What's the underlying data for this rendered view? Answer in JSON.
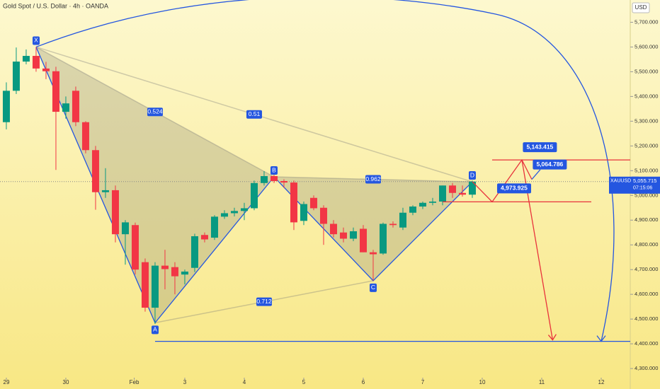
{
  "chart_data": {
    "type": "candlestick",
    "title": "Gold Spot / U.S. Dollar · 4h · OANDA",
    "currency": "USD",
    "symbol": "XAUUSD",
    "last_price": {
      "value": 5055.715,
      "label": "5,055.715"
    },
    "countdown": "07:15:06",
    "up_color": "#089981",
    "down_color": "#f23645",
    "open": [
      5296,
      5423,
      5541,
      5564,
      5513,
      5502,
      5338,
      5423,
      5296,
      5183,
      5013,
      5021,
      4843,
      4880,
      4730,
      4546,
      4716,
      4710,
      4680,
      4707,
      4840,
      4829,
      4914,
      4928,
      4937,
      4948,
      5050,
      5078,
      5058,
      5052,
      4897,
      4990,
      4950,
      4885,
      4850,
      4825,
      4865,
      4770,
      4765,
      4885,
      4870,
      4930,
      4955,
      4970,
      4975,
      5040,
      5010,
      5003
    ],
    "high": [
      5457,
      5598,
      5590,
      5600,
      5540,
      5520,
      5400,
      5440,
      5300,
      5200,
      5110,
      5040,
      4900,
      4890,
      4745,
      4730,
      4780,
      4730,
      4700,
      4845,
      4850,
      4920,
      4940,
      4950,
      4970,
      5060,
      5098,
      5090,
      5065,
      5060,
      4975,
      5000,
      4960,
      4900,
      4870,
      4870,
      4880,
      4780,
      4890,
      4895,
      4950,
      4960,
      4975,
      4990,
      5040,
      5050,
      5040,
      5060
    ],
    "low": [
      5267,
      5410,
      5530,
      5500,
      5470,
      5103,
      5310,
      5280,
      5170,
      4942,
      4990,
      4810,
      4720,
      4680,
      4530,
      4480,
      4620,
      4600,
      4640,
      4690,
      4810,
      4820,
      4905,
      4915,
      4900,
      4940,
      5040,
      5050,
      5030,
      4860,
      4880,
      4940,
      4800,
      4830,
      4810,
      4815,
      4770,
      4655,
      4760,
      4870,
      4860,
      4920,
      4945,
      4960,
      4960,
      4990,
      4995,
      4990
    ],
    "close": [
      5423,
      5541,
      5564,
      5513,
      5502,
      5338,
      5372,
      5296,
      5183,
      5013,
      5021,
      4843,
      4891,
      4700,
      4546,
      4716,
      4702,
      4673,
      4692,
      4835,
      4822,
      4914,
      4928,
      4937,
      4948,
      5050,
      5078,
      5058,
      5052,
      4891,
      4965,
      4948,
      4885,
      4843,
      4825,
      4855,
      4770,
      4762,
      4885,
      4880,
      4930,
      4955,
      4970,
      4975,
      5040,
      5010,
      5003,
      5055.715
    ],
    "xlim": [
      -0.64,
      62.93
    ],
    "xticks": [
      {
        "value": 0,
        "label": "29"
      },
      {
        "value": 6,
        "label": "30"
      },
      {
        "value": 12.9,
        "label": "Feb"
      },
      {
        "value": 18,
        "label": "3"
      },
      {
        "value": 24,
        "label": "4"
      },
      {
        "value": 30,
        "label": "5"
      },
      {
        "value": 36,
        "label": "6"
      },
      {
        "value": 42,
        "label": "7"
      },
      {
        "value": 48,
        "label": "10"
      },
      {
        "value": 54,
        "label": "11"
      },
      {
        "value": 60,
        "label": "12"
      }
    ],
    "ylim": [
      4263,
      5790
    ],
    "yticks": [
      {
        "value": 4300,
        "label": "4,300.000"
      },
      {
        "value": 4400,
        "label": "4,400.000"
      },
      {
        "value": 4500,
        "label": "4,500.000"
      },
      {
        "value": 4600,
        "label": "4,600.000"
      },
      {
        "value": 4700,
        "label": "4,700.000"
      },
      {
        "value": 4800,
        "label": "4,800.000"
      },
      {
        "value": 4900,
        "label": "4,900.000"
      },
      {
        "value": 5000,
        "label": "5,000.000"
      },
      {
        "value": 5100,
        "label": "5,100.000"
      },
      {
        "value": 5200,
        "label": "5,200.000"
      },
      {
        "value": 5300,
        "label": "5,300.000"
      },
      {
        "value": 5400,
        "label": "5,400.000"
      },
      {
        "value": 5500,
        "label": "5,500.000"
      },
      {
        "value": 5600,
        "label": "5,600.000"
      },
      {
        "value": 5700,
        "label": "5,700.000"
      }
    ],
    "pattern": [
      {
        "label": "X",
        "index": 3,
        "price": 5600
      },
      {
        "label": "A",
        "index": 15,
        "price": 4485
      },
      {
        "label": "B",
        "index": 27,
        "price": 5075
      },
      {
        "label": "C",
        "index": 37,
        "price": 4655
      },
      {
        "label": "D",
        "index": 47,
        "price": 5055
      }
    ],
    "ratios": [
      "0.524",
      "0.51",
      "0.962",
      "0.712"
    ],
    "targets": [
      {
        "value": 5143.415,
        "label": "5,143.415"
      },
      {
        "value": 5064.786,
        "label": "5,064.786"
      },
      {
        "value": 4973.925,
        "label": "4,973.925"
      }
    ],
    "support_line": 4410
  }
}
